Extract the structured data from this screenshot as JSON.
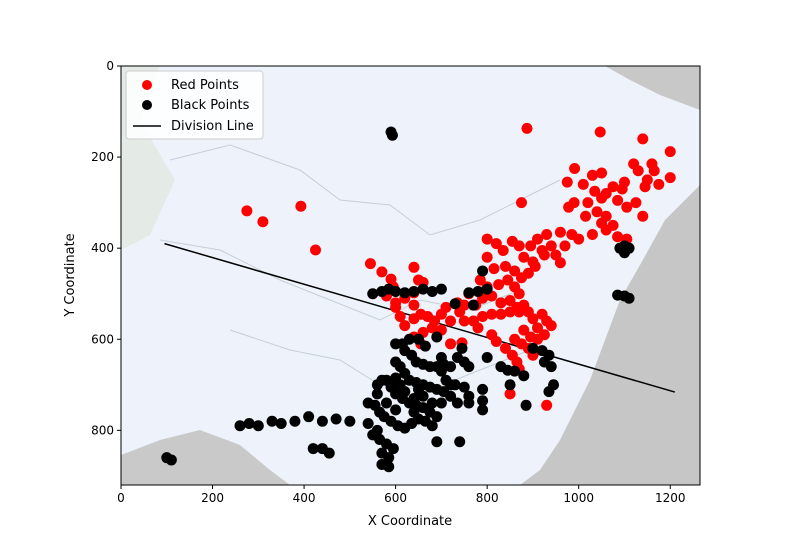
{
  "chart_data": {
    "type": "scatter",
    "title": "",
    "xlabel": "X Coordinate",
    "ylabel": "Y Coordinate",
    "xlim": [
      0,
      1265
    ],
    "ylim": [
      920,
      0
    ],
    "y_inverted": true,
    "xticks": [
      0,
      200,
      400,
      600,
      800,
      1000,
      1200
    ],
    "yticks": [
      0,
      200,
      400,
      600,
      800
    ],
    "background": "map of China with province borders (light blue land, grey neighboring areas)",
    "legend": {
      "placement": "top-left",
      "entries": [
        {
          "label": "Red Points",
          "kind": "marker",
          "color": "#ff0000"
        },
        {
          "label": "Black Points",
          "kind": "marker",
          "color": "#000000"
        },
        {
          "label": "Division Line",
          "kind": "line",
          "color": "#000000"
        }
      ]
    },
    "division_line": {
      "name": "Division Line",
      "color": "#000000",
      "points": [
        [
          95,
          390
        ],
        [
          1210,
          716
        ]
      ]
    },
    "series": [
      {
        "name": "Red Points",
        "color": "#ff0000",
        "points": [
          [
            887,
            137
          ],
          [
            1047,
            145
          ],
          [
            1140,
            160
          ],
          [
            1200,
            188
          ],
          [
            991,
            225
          ],
          [
            1030,
            240
          ],
          [
            1050,
            235
          ],
          [
            1075,
            265
          ],
          [
            1095,
            270
          ],
          [
            1130,
            230
          ],
          [
            1150,
            250
          ],
          [
            1165,
            230
          ],
          [
            1200,
            245
          ],
          [
            975,
            255
          ],
          [
            1010,
            260
          ],
          [
            1035,
            275
          ],
          [
            1060,
            280
          ],
          [
            1085,
            295
          ],
          [
            1105,
            310
          ],
          [
            1125,
            300
          ],
          [
            1145,
            265
          ],
          [
            1175,
            260
          ],
          [
            1160,
            215
          ],
          [
            1140,
            330
          ],
          [
            1020,
            300
          ],
          [
            1040,
            320
          ],
          [
            1060,
            330
          ],
          [
            978,
            310
          ],
          [
            1015,
            330
          ],
          [
            1050,
            345
          ],
          [
            1075,
            350
          ],
          [
            875,
            300
          ],
          [
            275,
            318
          ],
          [
            310,
            342
          ],
          [
            393,
            308
          ],
          [
            425,
            404
          ],
          [
            545,
            434
          ],
          [
            570,
            452
          ],
          [
            590,
            468
          ],
          [
            640,
            442
          ],
          [
            650,
            470
          ],
          [
            640,
            498
          ],
          [
            660,
            475
          ],
          [
            1030,
            370
          ],
          [
            1060,
            360
          ],
          [
            1085,
            375
          ],
          [
            1105,
            380
          ],
          [
            960,
            365
          ],
          [
            985,
            370
          ],
          [
            1000,
            380
          ],
          [
            940,
            395
          ],
          [
            970,
            395
          ],
          [
            925,
            415
          ],
          [
            950,
            415
          ],
          [
            960,
            432
          ],
          [
            800,
            380
          ],
          [
            820,
            390
          ],
          [
            835,
            405
          ],
          [
            855,
            385
          ],
          [
            870,
            395
          ],
          [
            895,
            395
          ],
          [
            910,
            380
          ],
          [
            930,
            370
          ],
          [
            880,
            420
          ],
          [
            900,
            430
          ],
          [
            920,
            405
          ],
          [
            800,
            420
          ],
          [
            815,
            445
          ],
          [
            840,
            440
          ],
          [
            860,
            450
          ],
          [
            875,
            465
          ],
          [
            890,
            455
          ],
          [
            905,
            440
          ],
          [
            785,
            470
          ],
          [
            800,
            485
          ],
          [
            825,
            480
          ],
          [
            845,
            470
          ],
          [
            860,
            485
          ],
          [
            870,
            500
          ],
          [
            790,
            510
          ],
          [
            810,
            505
          ],
          [
            830,
            520
          ],
          [
            850,
            515
          ],
          [
            865,
            530
          ],
          [
            880,
            525
          ],
          [
            760,
            500
          ],
          [
            775,
            525
          ],
          [
            740,
            540
          ],
          [
            750,
            560
          ],
          [
            770,
            560
          ],
          [
            790,
            550
          ],
          [
            810,
            545
          ],
          [
            830,
            545
          ],
          [
            850,
            540
          ],
          [
            870,
            540
          ],
          [
            890,
            540
          ],
          [
            900,
            555
          ],
          [
            910,
            575
          ],
          [
            920,
            545
          ],
          [
            930,
            560
          ],
          [
            940,
            570
          ],
          [
            880,
            580
          ],
          [
            895,
            595
          ],
          [
            910,
            600
          ],
          [
            925,
            590
          ],
          [
            860,
            600
          ],
          [
            875,
            610
          ],
          [
            890,
            620
          ],
          [
            900,
            635
          ],
          [
            840,
            620
          ],
          [
            855,
            635
          ],
          [
            865,
            650
          ],
          [
            870,
            665
          ],
          [
            620,
            510
          ],
          [
            640,
            525
          ],
          [
            655,
            545
          ],
          [
            670,
            550
          ],
          [
            685,
            560
          ],
          [
            700,
            545
          ],
          [
            710,
            530
          ],
          [
            720,
            560
          ],
          [
            700,
            580
          ],
          [
            680,
            575
          ],
          [
            660,
            585
          ],
          [
            640,
            595
          ],
          [
            620,
            570
          ],
          [
            610,
            550
          ],
          [
            600,
            530
          ],
          [
            580,
            505
          ],
          [
            595,
            485
          ],
          [
            600,
            520
          ],
          [
            640,
            555
          ],
          [
            655,
            610
          ],
          [
            720,
            610
          ],
          [
            745,
            608
          ],
          [
            735,
            520
          ],
          [
            750,
            525
          ],
          [
            780,
            575
          ],
          [
            810,
            590
          ],
          [
            820,
            605
          ],
          [
            850,
            720
          ],
          [
            930,
            745
          ],
          [
            1050,
            290
          ],
          [
            1100,
            255
          ],
          [
            1120,
            215
          ],
          [
            990,
            300
          ]
        ]
      },
      {
        "name": "Black Points",
        "color": "#000000",
        "points": [
          [
            590,
            145
          ],
          [
            593,
            152
          ],
          [
            1090,
            400
          ],
          [
            1100,
            395
          ],
          [
            1110,
            400
          ],
          [
            1100,
            410
          ],
          [
            1085,
            503
          ],
          [
            1100,
            505
          ],
          [
            1110,
            510
          ],
          [
            790,
            450
          ],
          [
            550,
            500
          ],
          [
            570,
            495
          ],
          [
            585,
            490
          ],
          [
            600,
            495
          ],
          [
            620,
            498
          ],
          [
            640,
            495
          ],
          [
            660,
            490
          ],
          [
            680,
            495
          ],
          [
            700,
            490
          ],
          [
            760,
            498
          ],
          [
            780,
            495
          ],
          [
            800,
            490
          ],
          [
            770,
            525
          ],
          [
            730,
            522
          ],
          [
            620,
            625
          ],
          [
            635,
            635
          ],
          [
            645,
            650
          ],
          [
            660,
            655
          ],
          [
            675,
            660
          ],
          [
            690,
            660
          ],
          [
            705,
            655
          ],
          [
            720,
            660
          ],
          [
            735,
            640
          ],
          [
            750,
            650
          ],
          [
            600,
            650
          ],
          [
            610,
            660
          ],
          [
            620,
            675
          ],
          [
            630,
            690
          ],
          [
            645,
            695
          ],
          [
            660,
            700
          ],
          [
            675,
            705
          ],
          [
            690,
            710
          ],
          [
            705,
            715
          ],
          [
            720,
            725
          ],
          [
            735,
            740
          ],
          [
            590,
            705
          ],
          [
            600,
            720
          ],
          [
            615,
            730
          ],
          [
            630,
            740
          ],
          [
            645,
            745
          ],
          [
            660,
            750
          ],
          [
            675,
            760
          ],
          [
            690,
            770
          ],
          [
            540,
            740
          ],
          [
            555,
            745
          ],
          [
            565,
            760
          ],
          [
            575,
            770
          ],
          [
            590,
            780
          ],
          [
            605,
            790
          ],
          [
            620,
            795
          ],
          [
            635,
            785
          ],
          [
            650,
            775
          ],
          [
            665,
            780
          ],
          [
            680,
            790
          ],
          [
            550,
            810
          ],
          [
            565,
            820
          ],
          [
            580,
            830
          ],
          [
            595,
            840
          ],
          [
            570,
            850
          ],
          [
            585,
            860
          ],
          [
            570,
            875
          ],
          [
            585,
            880
          ],
          [
            500,
            780
          ],
          [
            470,
            775
          ],
          [
            440,
            780
          ],
          [
            410,
            770
          ],
          [
            540,
            785
          ],
          [
            560,
            800
          ],
          [
            380,
            780
          ],
          [
            350,
            785
          ],
          [
            330,
            780
          ],
          [
            300,
            790
          ],
          [
            280,
            785
          ],
          [
            260,
            790
          ],
          [
            440,
            840
          ],
          [
            455,
            850
          ],
          [
            420,
            840
          ],
          [
            100,
            860
          ],
          [
            110,
            865
          ],
          [
            690,
            825
          ],
          [
            740,
            825
          ],
          [
            800,
            640
          ],
          [
            830,
            660
          ],
          [
            845,
            668
          ],
          [
            860,
            670
          ],
          [
            880,
            680
          ],
          [
            900,
            620
          ],
          [
            920,
            625
          ],
          [
            935,
            635
          ],
          [
            925,
            650
          ],
          [
            940,
            660
          ],
          [
            945,
            700
          ],
          [
            935,
            715
          ],
          [
            885,
            745
          ],
          [
            850,
            700
          ],
          [
            790,
            710
          ],
          [
            790,
            735
          ],
          [
            790,
            755
          ],
          [
            760,
            725
          ],
          [
            760,
            740
          ],
          [
            750,
            705
          ],
          [
            760,
            660
          ],
          [
            720,
            700
          ],
          [
            710,
            690
          ],
          [
            700,
            670
          ],
          [
            640,
            730
          ],
          [
            620,
            715
          ],
          [
            610,
            700
          ],
          [
            600,
            685
          ],
          [
            580,
            690
          ],
          [
            570,
            690
          ],
          [
            560,
            700
          ],
          [
            560,
            720
          ],
          [
            580,
            740
          ],
          [
            600,
            755
          ],
          [
            650,
            710
          ],
          [
            700,
            740
          ],
          [
            680,
            740
          ],
          [
            660,
            725
          ],
          [
            640,
            760
          ],
          [
            730,
            700
          ],
          [
            745,
            620
          ],
          [
            690,
            595
          ],
          [
            700,
            640
          ],
          [
            665,
            615
          ],
          [
            650,
            600
          ],
          [
            630,
            600
          ],
          [
            615,
            610
          ],
          [
            600,
            610
          ]
        ]
      }
    ]
  }
}
